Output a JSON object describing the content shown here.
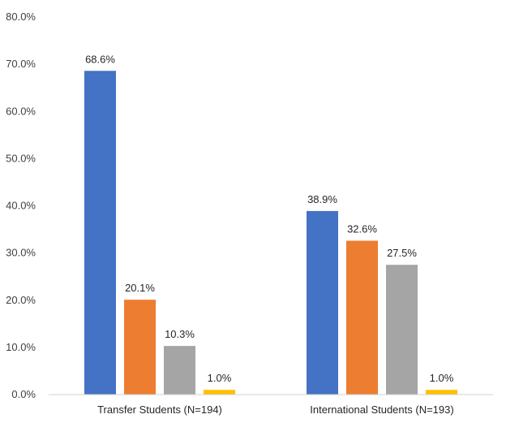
{
  "chart_data": {
    "type": "bar",
    "categories": [
      "Transfer Students (N=194)",
      "International Students (N=193)"
    ],
    "series": [
      {
        "values": [
          68.6,
          38.9
        ],
        "labels": [
          "68.6%",
          "38.9%"
        ],
        "color": "#4472C4"
      },
      {
        "values": [
          20.1,
          32.6
        ],
        "labels": [
          "20.1%",
          "32.6%"
        ],
        "color": "#ED7D31"
      },
      {
        "values": [
          10.3,
          27.5
        ],
        "labels": [
          "10.3%",
          "27.5%"
        ],
        "color": "#A5A5A5"
      },
      {
        "values": [
          1.0,
          1.0
        ],
        "labels": [
          "1.0%",
          "1.0%"
        ],
        "color": "#FFC000"
      }
    ],
    "ylim": [
      0,
      80
    ],
    "yticks": [
      "0.0%",
      "10.0%",
      "20.0%",
      "30.0%",
      "40.0%",
      "50.0%",
      "60.0%",
      "70.0%",
      "80.0%"
    ],
    "grid": false,
    "title": "",
    "xlabel": "",
    "ylabel": ""
  }
}
